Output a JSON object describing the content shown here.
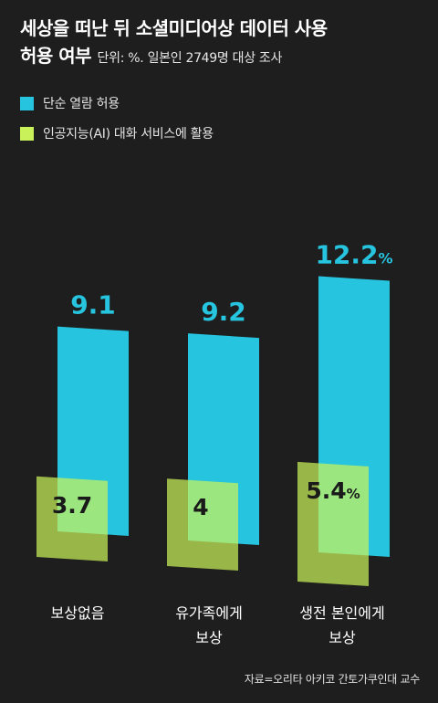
{
  "header": {
    "title_line1": "세상을 떠난 뒤 소셜미디어상 데이터 사용",
    "title_line2": "허용 여부",
    "unit": "단위: %. 일본인 2749명 대상 조사"
  },
  "source": "자료=오리타 아키코 간토가쿠인대 교수",
  "colors": {
    "background": "#1e1e1e",
    "series1": "#26c4de",
    "series2": "#c9f25a"
  },
  "chart_data": {
    "type": "bar",
    "categories": [
      [
        "보상없음"
      ],
      [
        "유가족에게",
        "보상"
      ],
      [
        "생전 본인에게",
        "보상"
      ]
    ],
    "series": [
      {
        "name": "단순 열람 허용",
        "values": [
          9.1,
          9.2,
          12.2
        ],
        "labels": [
          "9.1",
          "9.2",
          "12.2"
        ]
      },
      {
        "name": "인공지능(AI) 대화 서비스에 활용",
        "values": [
          3.7,
          4,
          5.4
        ],
        "labels": [
          "3.7",
          "4",
          "5.4"
        ]
      }
    ],
    "value_suffix": "%",
    "grid": false,
    "legend_position": "top-left"
  }
}
